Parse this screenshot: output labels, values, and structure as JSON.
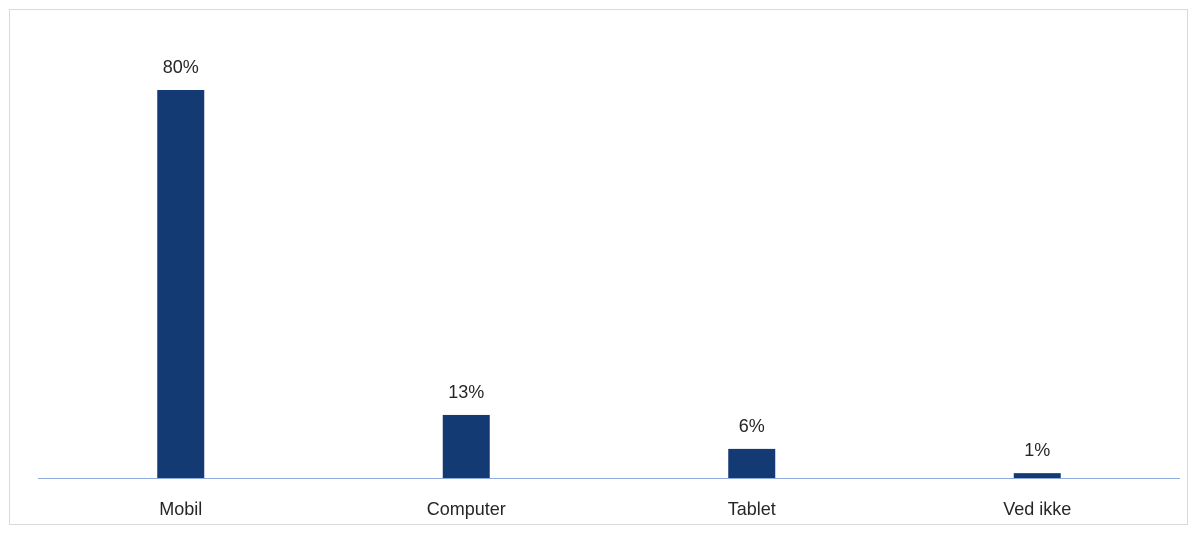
{
  "chart_data": {
    "type": "bar",
    "categories": [
      "Mobil",
      "Computer",
      "Tablet",
      "Ved ikke"
    ],
    "values": [
      80,
      13,
      6,
      1
    ],
    "data_labels": [
      "80%",
      "13%",
      "6%",
      "1%"
    ],
    "ylim": [
      0,
      80
    ],
    "grid": false,
    "legend": "none",
    "colors": {
      "bar": "#133A73",
      "axis": "#8FAADC",
      "text": "#262626"
    }
  }
}
